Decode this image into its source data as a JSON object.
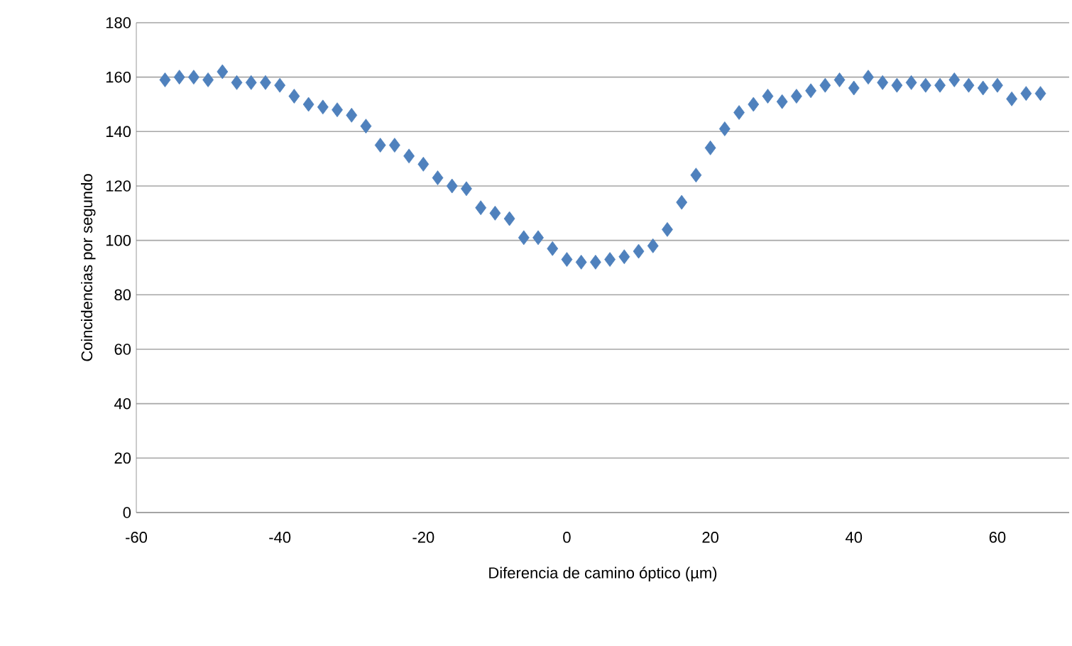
{
  "chart_data": {
    "type": "scatter",
    "xlabel": "Diferencia de camino óptico (µm)",
    "ylabel": "Coincidencias por segundo",
    "x": [
      -56,
      -54,
      -52,
      -50,
      -48,
      -46,
      -44,
      -42,
      -40,
      -38,
      -36,
      -34,
      -32,
      -30,
      -28,
      -26,
      -24,
      -22,
      -20,
      -18,
      -16,
      -14,
      -12,
      -10,
      -8,
      -6,
      -4,
      -2,
      0,
      2,
      4,
      6,
      8,
      10,
      12,
      14,
      16,
      18,
      20,
      22,
      24,
      26,
      28,
      30,
      32,
      34,
      36,
      38,
      40,
      42,
      44,
      46,
      48,
      50,
      52,
      54,
      56,
      58,
      60,
      62,
      64,
      66
    ],
    "values": [
      159,
      160,
      160,
      159,
      162,
      158,
      158,
      158,
      157,
      153,
      150,
      149,
      148,
      146,
      142,
      135,
      135,
      131,
      128,
      123,
      120,
      119,
      112,
      110,
      108,
      101,
      101,
      97,
      93,
      92,
      92,
      93,
      94,
      96,
      98,
      104,
      114,
      124,
      134,
      141,
      147,
      150,
      153,
      151,
      153,
      155,
      157,
      159,
      156,
      160,
      158,
      157,
      158,
      157,
      157,
      159,
      157,
      156,
      157,
      152,
      154,
      154
    ],
    "color": "#4f81bd",
    "marker": "diamond",
    "xlim": [
      -60,
      70
    ],
    "ylim": [
      0,
      180
    ],
    "xticks": [
      -60,
      -40,
      -20,
      0,
      20,
      40,
      60
    ],
    "yticks": [
      0,
      20,
      40,
      60,
      80,
      100,
      120,
      140,
      160,
      180
    ],
    "grid": "y"
  }
}
